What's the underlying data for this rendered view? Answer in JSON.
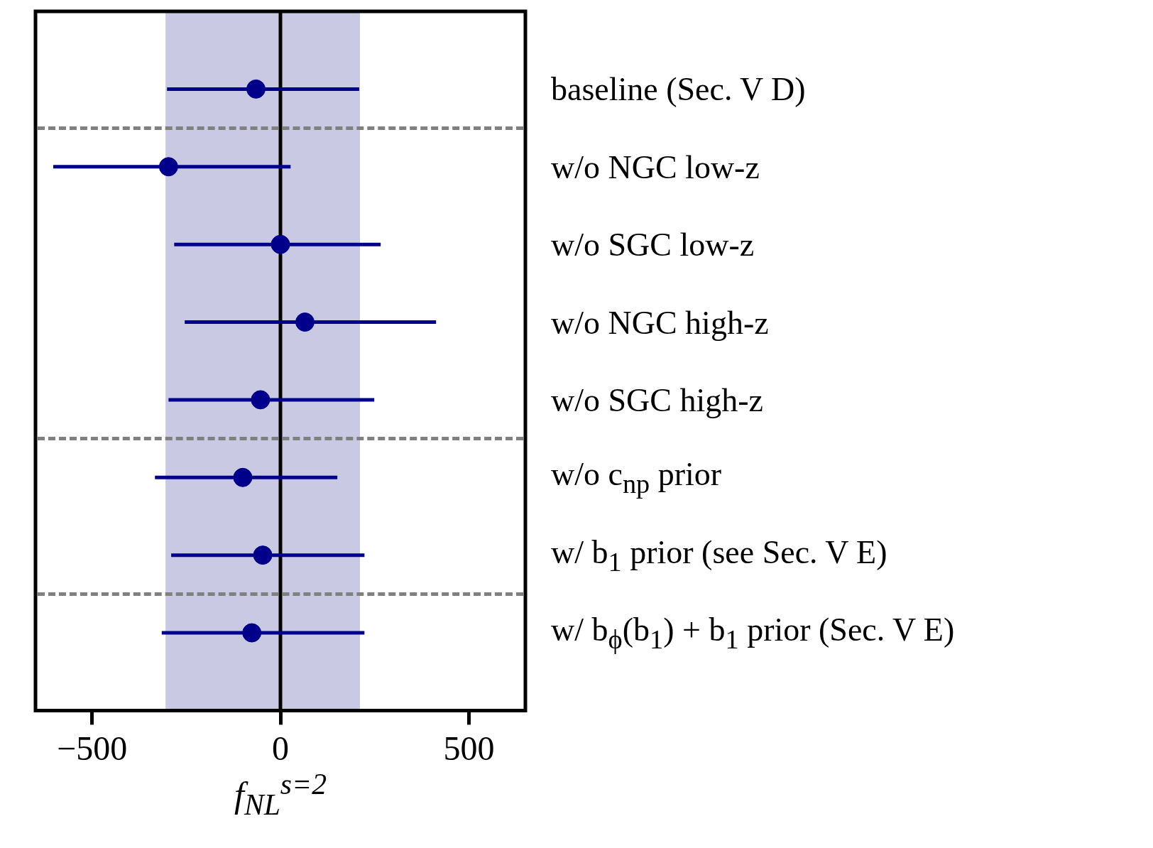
{
  "chart_data": {
    "type": "scatter",
    "orientation": "horizontal",
    "categories": [
      "baseline (Sec. V D)",
      "w/o NGC low-z",
      "w/o SGC low-z",
      "w/o NGC high-z",
      "w/o SGC high-z",
      "w/o c$_{np}$ prior",
      "w/ b$_{1}$ prior (see Sec. V E)",
      "w/ b$_{ϕ}$(b$_{1}$) + b$_{1}$ prior (Sec. V E)"
    ],
    "values": [
      -65,
      -297,
      0,
      65,
      -53,
      -100,
      -47,
      -76
    ],
    "errors": [
      [
        -301,
        209
      ],
      [
        -603,
        27
      ],
      [
        -282,
        266
      ],
      [
        -254,
        413
      ],
      [
        -297,
        249
      ],
      [
        -333,
        151
      ],
      [
        -290,
        223
      ],
      [
        -315,
        223
      ]
    ],
    "color": "#00008b",
    "marker": "circle",
    "xlabel": "f$_{NL}$$^{s=2}$",
    "xlim": [
      -650,
      650
    ],
    "xticks": [
      -500,
      0,
      500
    ],
    "bands": [
      {
        "axis": "x",
        "from": -305,
        "to": 211,
        "color": "#c9c9e4"
      }
    ],
    "ref_lines": [
      {
        "axis": "x",
        "value": 0,
        "color": "#000000",
        "line_style": "solid"
      }
    ]
  }
}
